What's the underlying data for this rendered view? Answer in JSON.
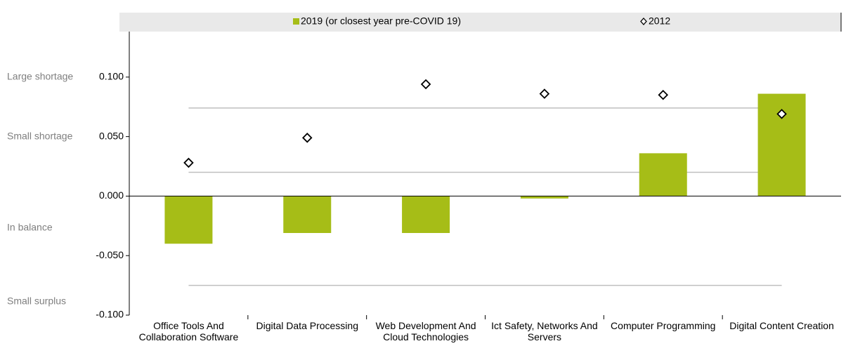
{
  "chart_data": {
    "type": "bar",
    "categories": [
      "Office Tools And Collaboration Software",
      "Digital Data Processing",
      "Web Development And Cloud Technologies",
      "Ict Safety, Networks And Servers",
      "Computer Programming",
      "Digital Content Creation"
    ],
    "series": [
      {
        "name": "2019 (or closest year pre-COVID 19)",
        "color": "#a6bd17",
        "type": "bar",
        "values": [
          -0.04,
          -0.031,
          -0.031,
          -0.002,
          0.036,
          0.086
        ]
      },
      {
        "name": "2012",
        "color": "#000000",
        "type": "scatter",
        "values": [
          0.028,
          0.049,
          0.094,
          0.086,
          0.085,
          0.069
        ]
      }
    ],
    "ylim": [
      -0.1,
      0.14
    ],
    "yticks": [
      {
        "value": -0.1,
        "label": "-0.100"
      },
      {
        "value": -0.05,
        "label": "-0.050"
      },
      {
        "value": 0,
        "label": "0.000"
      },
      {
        "value": 0.05,
        "label": "0.050"
      },
      {
        "value": 0.1,
        "label": "0.100"
      }
    ],
    "reference_lines": [
      0.074,
      0.02,
      -0.075
    ],
    "side_labels": [
      "Large shortage",
      "Small shortage",
      "In balance",
      "Small surplus"
    ],
    "legend": "top"
  }
}
